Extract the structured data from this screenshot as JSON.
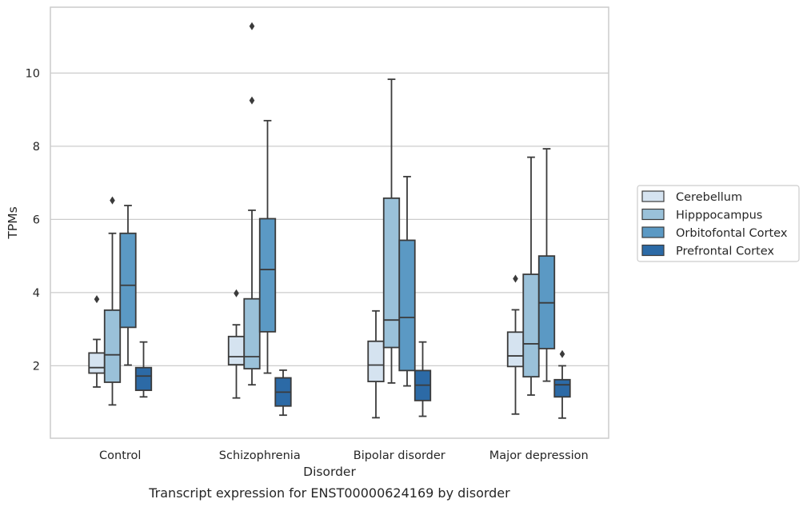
{
  "chart_data": {
    "type": "box",
    "title": "",
    "caption": "Transcript expression for ENST00000624169 by disorder",
    "xlabel": "Disorder",
    "ylabel": "TPMs",
    "ylim": [
      0.02,
      11.8
    ],
    "yticks": [
      2,
      4,
      6,
      8,
      10
    ],
    "grid": "horizontal",
    "legend_position": "right",
    "categories": [
      "Control",
      "Schizophrenia",
      "Bipolar disorder",
      "Major depression"
    ],
    "series": [
      {
        "name": "Cerebellum",
        "color": "#d5e3f0",
        "boxes": [
          {
            "whisker_low": 1.42,
            "q1": 1.8,
            "median": 1.95,
            "q3": 2.35,
            "whisker_high": 2.72,
            "outliers": [
              3.82
            ]
          },
          {
            "whisker_low": 1.12,
            "q1": 2.03,
            "median": 2.25,
            "q3": 2.8,
            "whisker_high": 3.12,
            "outliers": [
              3.98
            ]
          },
          {
            "whisker_low": 0.58,
            "q1": 1.57,
            "median": 2.02,
            "q3": 2.67,
            "whisker_high": 3.5,
            "outliers": []
          },
          {
            "whisker_low": 0.68,
            "q1": 1.98,
            "median": 2.27,
            "q3": 2.92,
            "whisker_high": 3.53,
            "outliers": [
              4.38
            ]
          }
        ]
      },
      {
        "name": "Hipppocampus",
        "color": "#9ac1d9",
        "boxes": [
          {
            "whisker_low": 0.93,
            "q1": 1.55,
            "median": 2.3,
            "q3": 3.52,
            "whisker_high": 5.62,
            "outliers": [
              6.52
            ]
          },
          {
            "whisker_low": 1.48,
            "q1": 1.92,
            "median": 2.25,
            "q3": 3.83,
            "whisker_high": 6.25,
            "outliers": [
              9.25,
              11.28
            ]
          },
          {
            "whisker_low": 1.53,
            "q1": 2.5,
            "median": 3.25,
            "q3": 6.58,
            "whisker_high": 9.83,
            "outliers": []
          },
          {
            "whisker_low": 1.2,
            "q1": 1.7,
            "median": 2.6,
            "q3": 4.5,
            "whisker_high": 7.7,
            "outliers": []
          }
        ]
      },
      {
        "name": "Orbitofontal Cortex",
        "color": "#5b99c4",
        "boxes": [
          {
            "whisker_low": 2.02,
            "q1": 3.05,
            "median": 4.2,
            "q3": 5.62,
            "whisker_high": 6.38,
            "outliers": []
          },
          {
            "whisker_low": 1.8,
            "q1": 2.93,
            "median": 4.63,
            "q3": 6.02,
            "whisker_high": 8.7,
            "outliers": []
          },
          {
            "whisker_low": 1.45,
            "q1": 1.87,
            "median": 3.32,
            "q3": 5.43,
            "whisker_high": 7.17,
            "outliers": []
          },
          {
            "whisker_low": 1.58,
            "q1": 2.47,
            "median": 3.72,
            "q3": 5.0,
            "whisker_high": 7.93,
            "outliers": []
          }
        ]
      },
      {
        "name": "Prefrontal Cortex",
        "color": "#2c6aa6",
        "boxes": [
          {
            "whisker_low": 1.15,
            "q1": 1.33,
            "median": 1.72,
            "q3": 1.95,
            "whisker_high": 2.65,
            "outliers": []
          },
          {
            "whisker_low": 0.65,
            "q1": 0.9,
            "median": 1.28,
            "q3": 1.67,
            "whisker_high": 1.88,
            "outliers": []
          },
          {
            "whisker_low": 0.62,
            "q1": 1.05,
            "median": 1.47,
            "q3": 1.87,
            "whisker_high": 2.65,
            "outliers": []
          },
          {
            "whisker_low": 0.57,
            "q1": 1.15,
            "median": 1.48,
            "q3": 1.62,
            "whisker_high": 2.0,
            "outliers": [
              2.32
            ]
          }
        ]
      }
    ]
  }
}
